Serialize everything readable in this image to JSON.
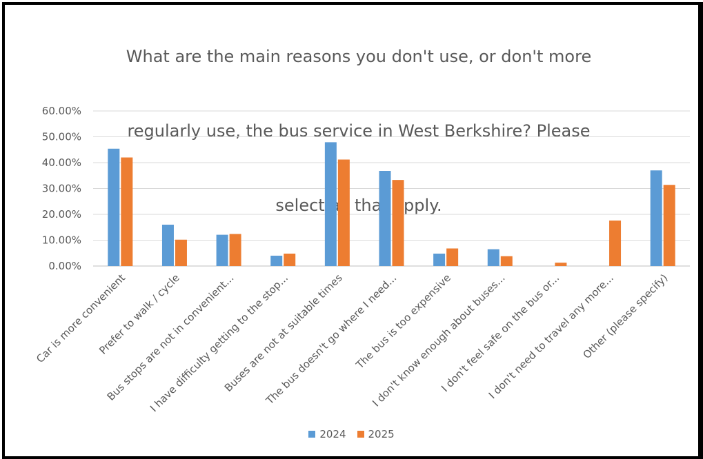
{
  "chart_data": {
    "type": "bar",
    "title": "What are the main reasons you don't use, or don't more regularly use, the bus service in West Berkshire? Please select all that apply.",
    "title_lines": [
      "What are the main reasons you don't use, or don't more",
      "regularly use, the bus service in West Berkshire? Please",
      "select all that apply."
    ],
    "categories": [
      "Car is more convenient",
      "Prefer to walk / cycle",
      "Bus stops are not in convenient...",
      "I have difficulty getting to the stop...",
      "Buses are not at suitable times",
      "The bus doesn't go where I need...",
      "The bus is too expensive",
      "I don't know enough about buses...",
      "I don't feel safe on the bus or...",
      "I don't need to travel any more...",
      "Other (please specify)"
    ],
    "series": [
      {
        "name": "2024",
        "color": "#5B9BD5",
        "values": [
          45.4,
          16.0,
          12.1,
          4.0,
          47.9,
          36.8,
          4.8,
          6.5,
          0.0,
          0.0,
          37.0
        ]
      },
      {
        "name": "2025",
        "color": "#ED7D31",
        "values": [
          42.0,
          10.2,
          12.4,
          4.8,
          41.2,
          33.3,
          6.8,
          3.8,
          1.3,
          17.6,
          31.4
        ]
      }
    ],
    "ylim": [
      0,
      60
    ],
    "yticks": [
      0,
      10,
      20,
      30,
      40,
      50,
      60
    ],
    "ytick_labels": [
      "0.00%",
      "10.00%",
      "20.00%",
      "30.00%",
      "40.00%",
      "50.00%",
      "60.00%"
    ],
    "grid": true,
    "legend_position": "bottom"
  }
}
